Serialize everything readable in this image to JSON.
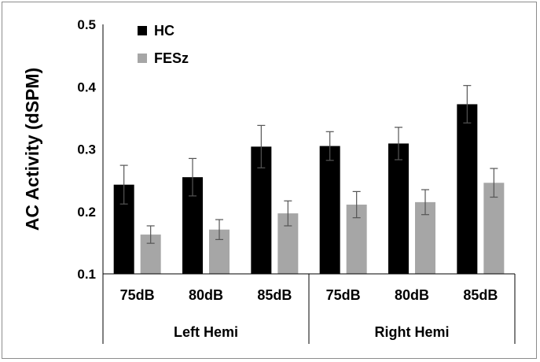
{
  "chart_data": {
    "type": "bar",
    "title": "",
    "ylabel": "AC Activity (dSPM)",
    "xlabel": "",
    "ylim": [
      0.1,
      0.5
    ],
    "yticks": [
      "0.1",
      "0.2",
      "0.3",
      "0.4",
      "0.5"
    ],
    "grid": false,
    "legend_position": "top-left",
    "categories": [
      "75dB",
      "80dB",
      "85dB",
      "75dB",
      "80dB",
      "85dB"
    ],
    "groups": [
      {
        "label": "Left Hemi",
        "categories": [
          0,
          1,
          2
        ]
      },
      {
        "label": "Right Hemi",
        "categories": [
          3,
          4,
          5
        ]
      }
    ],
    "series": [
      {
        "name": "HC",
        "color": "#000000",
        "values": [
          0.243,
          0.255,
          0.304,
          0.305,
          0.309,
          0.372
        ],
        "errors": [
          0.031,
          0.03,
          0.034,
          0.023,
          0.026,
          0.03
        ]
      },
      {
        "name": "FESz",
        "color": "#a6a6a6",
        "values": [
          0.163,
          0.171,
          0.197,
          0.211,
          0.215,
          0.246
        ],
        "errors": [
          0.014,
          0.016,
          0.02,
          0.021,
          0.02,
          0.023
        ]
      }
    ]
  }
}
